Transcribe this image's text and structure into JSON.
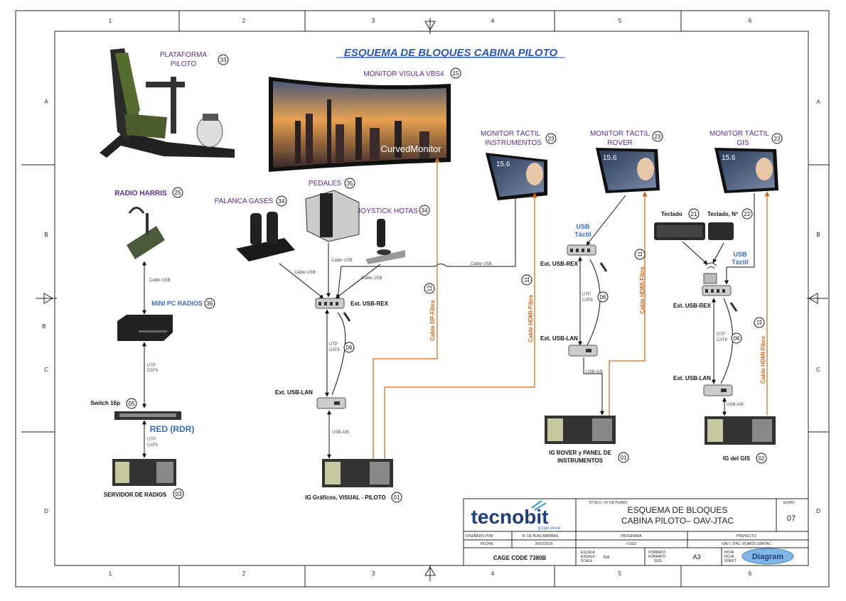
{
  "title": "ESQUEMA DE BLOQUES CABINA PILOTO",
  "frame": {
    "cols": [
      "1",
      "2",
      "3",
      "4",
      "5",
      "6"
    ],
    "rows_left": [
      "A",
      "B",
      "B",
      "C",
      "D"
    ],
    "rows_right": [
      "A",
      "B",
      "C",
      "D"
    ]
  },
  "equipment": {
    "plataforma": {
      "label1": "PLATAFORMA",
      "label2": "PILOTO",
      "num": "33"
    },
    "monitor_visual": {
      "label": "MONITOR VISULA VBS4",
      "num": "15",
      "screen_text": "CurvedMonitor"
    },
    "monitor_instr": {
      "label1": "MONITOR TÁCTIL",
      "label2": "INSTRUMENTOS",
      "num": "23",
      "screen": "15.6"
    },
    "monitor_rover": {
      "label1": "MONITOR TÁCTIL",
      "label2": "ROVER",
      "num": "23",
      "screen": "15.6"
    },
    "monitor_gis": {
      "label1": "MONITOR TÁCTIL",
      "label2": "GIS",
      "num": "23",
      "screen": "15.6"
    },
    "radio": {
      "label": "RADIO HARRIS",
      "num": "25"
    },
    "mini_pc": {
      "label": "MINI PC RADIOS",
      "num": "36"
    },
    "switch": {
      "label": "Switch 16p",
      "num": "05"
    },
    "red": {
      "label": "RED (RDR)"
    },
    "servidor": {
      "label": "SERVIDOR DE RADIOS",
      "num": "03"
    },
    "palanca": {
      "label": "PALANCA GASES",
      "num": "34"
    },
    "pedales": {
      "label": "PEDALES",
      "num": "35"
    },
    "joystick": {
      "label": "JOYSTICK HOTAS",
      "num": "34"
    },
    "ig_graficos": {
      "label": "IG Gráficos, VISUAL - PILOTO",
      "num": "01"
    },
    "ig_rover": {
      "label1": "IG ROVER y PANEL DE",
      "label2": "INSTRUMENTOS",
      "num": "01"
    },
    "ig_gis": {
      "label": "IG del GIS",
      "num": "02"
    },
    "teclado": {
      "label": "Teclado",
      "num": "21"
    },
    "teclado_n": {
      "label": "Teclado, Nº",
      "num": "22"
    }
  },
  "links": {
    "cable_usb": "Cable USB",
    "usb_tactil1": "USB",
    "usb_tactil2": "Táctil",
    "ext_usb_rex": "Ext. USB-REX",
    "ext_usb_lan": "Ext. USB-LAN",
    "utp1": "UTP",
    "utp2": "CAT6",
    "usb_ab": "USB-A/B",
    "cable_dp": "Cable DP-Fibra",
    "cable_hdmi": "Cable HDMI-Fibra",
    "num_06": "06",
    "num_12": "12",
    "num_11": "11"
  },
  "title_block": {
    "titulo_hdr": "TITULO - Nº DE PLANO",
    "title_line1": "ESQUEMA DE BLOQUES",
    "title_line2": "CABINA PILOTO– OAV-JTAC",
    "edrv_hdr": "ED/RV",
    "edrv": "07",
    "logo": "tecnobit",
    "logo_sub": "grupo oesia",
    "disenado_hdr": "DISEÑADO POR:",
    "disenado": "R. DE BLAS ARRIBAS",
    "programa_hdr": "PROGRAMA",
    "proyecto_hdr": "PROYECTO",
    "fecha_hdr": "FECHA:",
    "fecha": "26/02/2025",
    "programa": "I-0163",
    "proyecto": "OAV / JTAC -DOMOS SIM/TAC",
    "cage": "CAGE CODE 7380B",
    "escala_hdr1": "ESCALA",
    "escala_hdr2": "ESCALA",
    "escala_hdr3": "SCALE",
    "escala": "N/A",
    "formato_hdr1": "FORMATO",
    "formato_hdr2": "FORMATO",
    "formato_hdr3": "SIZE",
    "formato": "A3",
    "hoja_hdr1": "HOJA",
    "hoja_hdr2": "HOJA",
    "hoja_hdr3": "SHEET",
    "badge": "Diagram"
  },
  "colors": {
    "orange": "#c8681e",
    "purple": "#5b2d8a",
    "blue": "#3a6cb4",
    "title_blue": "#2b57b8"
  }
}
